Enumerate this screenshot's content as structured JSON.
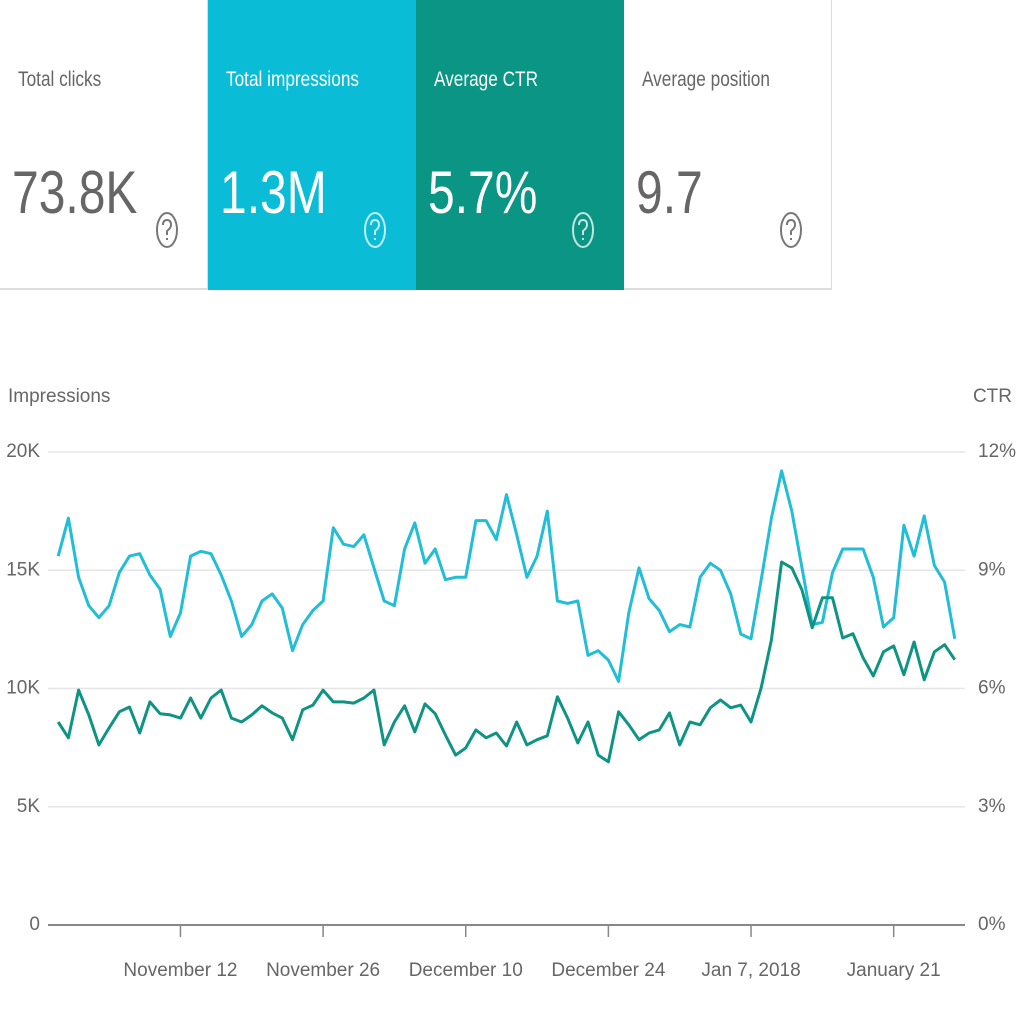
{
  "cards": [
    {
      "title": "Total clicks",
      "value": "73.8K",
      "background": "#ffffff",
      "color": "#666666"
    },
    {
      "title": "Total impressions",
      "value": "1.3M",
      "background": "#0abcd6",
      "color": "#ffffff"
    },
    {
      "title": "Average CTR",
      "value": "5.7%",
      "background": "#0a9584",
      "color": "#ffffff"
    },
    {
      "title": "Average position",
      "value": "9.7",
      "background": "#ffffff",
      "color": "#666666"
    }
  ],
  "chart_data": {
    "type": "line",
    "y_label": "Impressions",
    "y2_label": "CTR",
    "x": [
      "2017-10-31",
      "2017-11-01",
      "2017-11-02",
      "2017-11-03",
      "2017-11-04",
      "2017-11-05",
      "2017-11-06",
      "2017-11-07",
      "2017-11-08",
      "2017-11-09",
      "2017-11-10",
      "2017-11-11",
      "2017-11-12",
      "2017-11-13",
      "2017-11-14",
      "2017-11-15",
      "2017-11-16",
      "2017-11-17",
      "2017-11-18",
      "2017-11-19",
      "2017-11-20",
      "2017-11-21",
      "2017-11-22",
      "2017-11-23",
      "2017-11-24",
      "2017-11-25",
      "2017-11-26",
      "2017-11-27",
      "2017-11-28",
      "2017-11-29",
      "2017-11-30",
      "2017-12-01",
      "2017-12-02",
      "2017-12-03",
      "2017-12-04",
      "2017-12-05",
      "2017-12-06",
      "2017-12-07",
      "2017-12-08",
      "2017-12-09",
      "2017-12-10",
      "2017-12-11",
      "2017-12-12",
      "2017-12-13",
      "2017-12-14",
      "2017-12-15",
      "2017-12-16",
      "2017-12-17",
      "2017-12-18",
      "2017-12-19",
      "2017-12-20",
      "2017-12-21",
      "2017-12-22",
      "2017-12-23",
      "2017-12-24",
      "2017-12-25",
      "2017-12-26",
      "2017-12-27",
      "2017-12-28",
      "2017-12-29",
      "2017-12-30",
      "2017-12-31",
      "2018-01-01",
      "2018-01-02",
      "2018-01-03",
      "2018-01-04",
      "2018-01-05",
      "2018-01-06",
      "2018-01-07",
      "2018-01-08",
      "2018-01-09",
      "2018-01-10",
      "2018-01-11",
      "2018-01-12",
      "2018-01-13",
      "2018-01-14",
      "2018-01-15",
      "2018-01-16",
      "2018-01-17",
      "2018-01-18",
      "2018-01-19",
      "2018-01-20",
      "2018-01-21",
      "2018-01-22",
      "2018-01-23",
      "2018-01-24",
      "2018-01-25",
      "2018-01-26",
      "2018-01-27"
    ],
    "series": [
      {
        "name": "Impressions",
        "color": "#22bdd6",
        "axis": "y",
        "values": [
          15600,
          17200,
          14700,
          13500,
          13000,
          13500,
          14900,
          15600,
          15700,
          14800,
          14200,
          12200,
          13200,
          15600,
          15800,
          15700,
          14800,
          13700,
          12200,
          12700,
          13700,
          14000,
          13400,
          11600,
          12700,
          13300,
          13700,
          16800,
          16100,
          16000,
          16500,
          15100,
          13700,
          13500,
          15900,
          17000,
          15300,
          15900,
          14600,
          14700,
          14700,
          17100,
          17100,
          16300,
          18200,
          16500,
          14700,
          15600,
          17500,
          13700,
          13600,
          13700,
          11400,
          11600,
          11200,
          10300,
          13200,
          15100,
          13800,
          13300,
          12400,
          12700,
          12600,
          14700,
          15300,
          15000,
          14000,
          12300,
          12100,
          14600,
          17200,
          19200,
          17500,
          15100,
          12700,
          12800,
          14900,
          15900,
          15900,
          15900,
          14700,
          12600,
          13000,
          16900,
          15600,
          17300,
          15200,
          14500,
          12100
        ]
      },
      {
        "name": "CTR",
        "color": "#0f9383",
        "axis": "y2",
        "values": [
          5.15,
          4.75,
          5.96,
          5.33,
          4.57,
          5.0,
          5.41,
          5.53,
          4.87,
          5.66,
          5.36,
          5.33,
          5.25,
          5.76,
          5.25,
          5.76,
          5.96,
          5.25,
          5.15,
          5.33,
          5.56,
          5.38,
          5.25,
          4.7,
          5.46,
          5.58,
          5.96,
          5.66,
          5.66,
          5.63,
          5.76,
          5.96,
          4.57,
          5.15,
          5.56,
          4.9,
          5.61,
          5.36,
          4.82,
          4.31,
          4.49,
          4.95,
          4.75,
          4.87,
          4.54,
          5.15,
          4.57,
          4.7,
          4.8,
          5.79,
          5.25,
          4.62,
          5.15,
          4.31,
          4.14,
          5.41,
          5.08,
          4.7,
          4.87,
          4.95,
          5.38,
          4.57,
          5.15,
          5.08,
          5.51,
          5.71,
          5.51,
          5.58,
          5.15,
          6.02,
          7.23,
          9.21,
          9.06,
          8.5,
          7.54,
          8.3,
          8.3,
          7.28,
          7.39,
          6.78,
          6.32,
          6.93,
          7.08,
          6.35,
          7.18,
          6.22,
          6.93,
          7.11,
          6.73
        ]
      }
    ],
    "xlim": [
      "2017-10-30",
      "2018-01-28"
    ],
    "xticks": [
      {
        "value": "2017-11-12",
        "label": "November 12"
      },
      {
        "value": "2017-11-26",
        "label": "November 26"
      },
      {
        "value": "2017-12-10",
        "label": "December 10"
      },
      {
        "value": "2017-12-24",
        "label": "December 24"
      },
      {
        "value": "2018-01-07",
        "label": "Jan 7, 2018"
      },
      {
        "value": "2018-01-21",
        "label": "January 21"
      }
    ],
    "ylim": [
      0,
      20000
    ],
    "yticks": [
      0,
      {
        "value": 5000,
        "label": "5K"
      },
      {
        "value": 10000,
        "label": "10K"
      },
      {
        "value": 15000,
        "label": "15K"
      },
      {
        "value": 20000,
        "label": "20K"
      }
    ],
    "y2lim": [
      0,
      12
    ],
    "y2ticks": [
      {
        "value": 0,
        "label": "0%"
      },
      {
        "value": 3,
        "label": "3%"
      },
      {
        "value": 6,
        "label": "6%"
      },
      {
        "value": 9,
        "label": "9%"
      },
      {
        "value": 12,
        "label": "12%"
      }
    ],
    "grid": true
  }
}
